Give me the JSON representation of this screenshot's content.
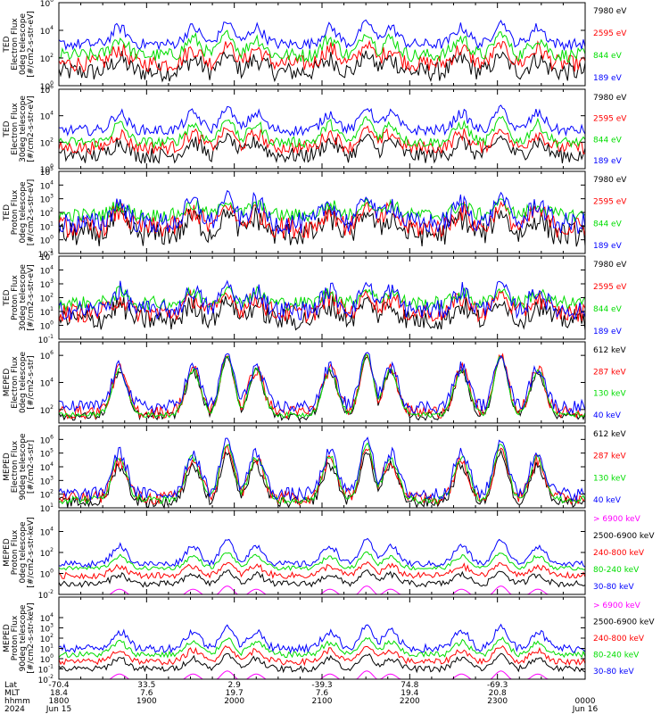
{
  "chart_data": {
    "type": "line",
    "x_axis": {
      "tick_labels": [
        "1800",
        "1900",
        "2000",
        "2100",
        "2200",
        "2300",
        "0000"
      ],
      "rows": [
        {
          "name": "Lat",
          "values": [
            "-70.4",
            "33.5",
            "2.9",
            "-39.3",
            "74.8",
            "-69.3",
            ""
          ]
        },
        {
          "name": "MLT",
          "values": [
            "18.4",
            "7.6",
            "19.7",
            "7.6",
            "19.4",
            "20.8",
            ""
          ]
        },
        {
          "name": "hhmm",
          "values": [
            "1800",
            "1900",
            "2000",
            "2100",
            "2200",
            "2300",
            "0000"
          ]
        },
        {
          "name": "2024",
          "values": [
            "Jun 15",
            "",
            "",
            "",
            "",
            "",
            "Jun 16"
          ]
        }
      ]
    },
    "panels": [
      {
        "ylabel": [
          "TED",
          "Electron Flux",
          "0deg telescope",
          "[#/cm2-s-str-eV]"
        ],
        "ylim_exp": [
          0,
          6
        ],
        "ticks": [
          {
            "exp": 0,
            "label": "10"
          },
          {
            "exp": 2,
            "label": "10"
          },
          {
            "exp": 4,
            "label": "10"
          },
          {
            "exp": 6,
            "label": "10"
          }
        ],
        "tick_exps": [
          "0",
          "2",
          "4",
          "6"
        ],
        "series": [
          {
            "name": "7980 eV",
            "color": "#000000",
            "base": 1.0,
            "spread": 0.7,
            "peak": 2.2
          },
          {
            "name": "2595 eV",
            "color": "#ff0000",
            "base": 1.6,
            "spread": 0.6,
            "peak": 3.0
          },
          {
            "name": "844 eV",
            "color": "#00dd00",
            "base": 2.2,
            "spread": 0.5,
            "peak": 3.8
          },
          {
            "name": "189 eV",
            "color": "#0000ff",
            "base": 3.0,
            "spread": 0.4,
            "peak": 4.6
          }
        ]
      },
      {
        "ylabel": [
          "TED",
          "Electron Flux",
          "30deg telescope",
          "[#/cm2-s-str-eV]"
        ],
        "ylim_exp": [
          0,
          6
        ],
        "ticks": [
          {
            "exp": 0,
            "label": "10"
          },
          {
            "exp": 2,
            "label": "10"
          },
          {
            "exp": 4,
            "label": "10"
          },
          {
            "exp": 6,
            "label": "10"
          }
        ],
        "tick_exps": [
          "0",
          "2",
          "4",
          "6"
        ],
        "series": [
          {
            "name": "7980 eV",
            "color": "#000000",
            "base": 1.0,
            "spread": 0.6,
            "peak": 2.4
          },
          {
            "name": "2595 eV",
            "color": "#ff0000",
            "base": 1.6,
            "spread": 0.5,
            "peak": 3.0
          },
          {
            "name": "844 eV",
            "color": "#00dd00",
            "base": 2.0,
            "spread": 0.4,
            "peak": 3.8
          },
          {
            "name": "189 eV",
            "color": "#0000ff",
            "base": 2.9,
            "spread": 0.4,
            "peak": 4.6
          }
        ]
      },
      {
        "ylabel": [
          "TED",
          "Proton Flux",
          "0deg telescope",
          "[#/cm2-s-str-eV]"
        ],
        "ylim_exp": [
          -1,
          5
        ],
        "ticks": [
          {
            "exp": -1,
            "label": "10"
          },
          {
            "exp": 0,
            "label": "10"
          },
          {
            "exp": 1,
            "label": "10"
          },
          {
            "exp": 2,
            "label": "10"
          },
          {
            "exp": 3,
            "label": "10"
          },
          {
            "exp": 4,
            "label": "10"
          },
          {
            "exp": 5,
            "label": "10"
          }
        ],
        "tick_exps": [
          "-1",
          "0",
          "1",
          "2",
          "3",
          "4",
          "5"
        ],
        "series": [
          {
            "name": "7980 eV",
            "color": "#000000",
            "base": 0.4,
            "spread": 0.9,
            "peak": 2.0
          },
          {
            "name": "2595 eV",
            "color": "#ff0000",
            "base": 0.9,
            "spread": 0.8,
            "peak": 2.5
          },
          {
            "name": "844 eV",
            "color": "#00dd00",
            "base": 1.8,
            "spread": 0.5,
            "peak": 2.8
          },
          {
            "name": "189 eV",
            "color": "#0000ff",
            "base": 1.2,
            "spread": 0.8,
            "peak": 3.2
          }
        ]
      },
      {
        "ylabel": [
          "TED",
          "Proton Flux",
          "30deg telescope",
          "[#/cm2-s-str-eV]"
        ],
        "ylim_exp": [
          -1,
          5
        ],
        "ticks": [
          {
            "exp": -1,
            "label": "10"
          },
          {
            "exp": 0,
            "label": "10"
          },
          {
            "exp": 1,
            "label": "10"
          },
          {
            "exp": 2,
            "label": "10"
          },
          {
            "exp": 3,
            "label": "10"
          },
          {
            "exp": 4,
            "label": "10"
          },
          {
            "exp": 5,
            "label": "10"
          }
        ],
        "tick_exps": [
          "-1",
          "0",
          "1",
          "2",
          "3",
          "4",
          "5"
        ],
        "series": [
          {
            "name": "7980 eV",
            "color": "#000000",
            "base": 0.4,
            "spread": 0.8,
            "peak": 1.8
          },
          {
            "name": "2595 eV",
            "color": "#ff0000",
            "base": 0.9,
            "spread": 0.7,
            "peak": 2.3
          },
          {
            "name": "844 eV",
            "color": "#00dd00",
            "base": 1.6,
            "spread": 0.5,
            "peak": 2.6
          },
          {
            "name": "189 eV",
            "color": "#0000ff",
            "base": 1.1,
            "spread": 0.7,
            "peak": 3.0
          }
        ]
      },
      {
        "ylabel": [
          "MEPED",
          "Electron Flux",
          "0deg telescope",
          "[#/cm2-s-str]"
        ],
        "ylim_exp": [
          1,
          7
        ],
        "ticks": [
          {
            "exp": 2,
            "label": "10"
          },
          {
            "exp": 4,
            "label": "10"
          },
          {
            "exp": 6,
            "label": "10"
          }
        ],
        "tick_exps": [
          "2",
          "4",
          "6"
        ],
        "series": [
          {
            "name": "612 keV",
            "color": "#000000",
            "base": 1.5,
            "spread": 0.3,
            "peak": 5.9
          },
          {
            "name": "287 keV",
            "color": "#ff0000",
            "base": 1.8,
            "spread": 0.5,
            "peak": 6.0
          },
          {
            "name": "130 keV",
            "color": "#00dd00",
            "base": 1.6,
            "spread": 0.2,
            "peak": 6.0
          },
          {
            "name": "40 keV",
            "color": "#0000ff",
            "base": 2.2,
            "spread": 0.5,
            "peak": 6.1
          }
        ]
      },
      {
        "ylabel": [
          "MEPED",
          "Electron Flux",
          "90deg telescope",
          "[#/cm2-s-str]"
        ],
        "ylim_exp": [
          1,
          7
        ],
        "ticks": [
          {
            "exp": 1,
            "label": "10"
          },
          {
            "exp": 2,
            "label": "10"
          },
          {
            "exp": 3,
            "label": "10"
          },
          {
            "exp": 4,
            "label": "10"
          },
          {
            "exp": 5,
            "label": "10"
          },
          {
            "exp": 6,
            "label": "10"
          }
        ],
        "tick_exps": [
          "1",
          "2",
          "3",
          "4",
          "5",
          "6"
        ],
        "series": [
          {
            "name": "612 keV",
            "color": "#000000",
            "base": 1.4,
            "spread": 0.4,
            "peak": 5.0
          },
          {
            "name": "287 keV",
            "color": "#ff0000",
            "base": 1.7,
            "spread": 0.5,
            "peak": 5.4
          },
          {
            "name": "130 keV",
            "color": "#00dd00",
            "base": 1.6,
            "spread": 0.3,
            "peak": 5.7
          },
          {
            "name": "40 keV",
            "color": "#0000ff",
            "base": 2.0,
            "spread": 0.5,
            "peak": 6.0
          }
        ]
      },
      {
        "ylabel": [
          "MEPED",
          "Proton Flux",
          "0deg telescope",
          "[#/cm2-s-str-keV]"
        ],
        "ylim_exp": [
          -2,
          6
        ],
        "ticks": [
          {
            "exp": -2,
            "label": "10"
          },
          {
            "exp": 0,
            "label": "10"
          },
          {
            "exp": 2,
            "label": "10"
          },
          {
            "exp": 4,
            "label": "10"
          }
        ],
        "tick_exps": [
          "-2",
          "0",
          "2",
          "4"
        ],
        "series": [
          {
            "name": "> 6900 keV",
            "color": "#ff00ff",
            "base": -2.4,
            "spread": 0.0,
            "peak": -1.2
          },
          {
            "name": "2500-6900 keV",
            "color": "#000000",
            "base": -1.0,
            "spread": 0.3,
            "peak": 0.2
          },
          {
            "name": "240-800 keV",
            "color": "#ff0000",
            "base": -0.2,
            "spread": 0.3,
            "peak": 1.0
          },
          {
            "name": "80-240 keV",
            "color": "#00dd00",
            "base": 0.5,
            "spread": 0.2,
            "peak": 2.0
          },
          {
            "name": "30-80 keV",
            "color": "#0000ff",
            "base": 0.9,
            "spread": 0.3,
            "peak": 3.2
          }
        ]
      },
      {
        "ylabel": [
          "MEPED",
          "Proton Flux",
          "90deg telescope",
          "[#/cm2-s-str-keV]"
        ],
        "ylim_exp": [
          -2,
          6
        ],
        "ticks": [
          {
            "exp": -2,
            "label": "10"
          },
          {
            "exp": -1,
            "label": "10"
          },
          {
            "exp": 0,
            "label": "10"
          },
          {
            "exp": 1,
            "label": "10"
          },
          {
            "exp": 2,
            "label": "10"
          },
          {
            "exp": 3,
            "label": "10"
          },
          {
            "exp": 4,
            "label": "10"
          }
        ],
        "tick_exps": [
          "-2",
          "-1",
          "0",
          "1",
          "2",
          "3",
          "4"
        ],
        "series": [
          {
            "name": "> 6900 keV",
            "color": "#ff00ff",
            "base": -2.4,
            "spread": 0.0,
            "peak": -1.2
          },
          {
            "name": "2500-6900 keV",
            "color": "#000000",
            "base": -1.0,
            "spread": 0.3,
            "peak": 0.4
          },
          {
            "name": "240-800 keV",
            "color": "#ff0000",
            "base": -0.3,
            "spread": 0.3,
            "peak": 1.2
          },
          {
            "name": "80-240 keV",
            "color": "#00dd00",
            "base": 0.4,
            "spread": 0.3,
            "peak": 2.0
          },
          {
            "name": "30-80 keV",
            "color": "#0000ff",
            "base": 1.0,
            "spread": 0.4,
            "peak": 3.2
          }
        ]
      }
    ]
  }
}
